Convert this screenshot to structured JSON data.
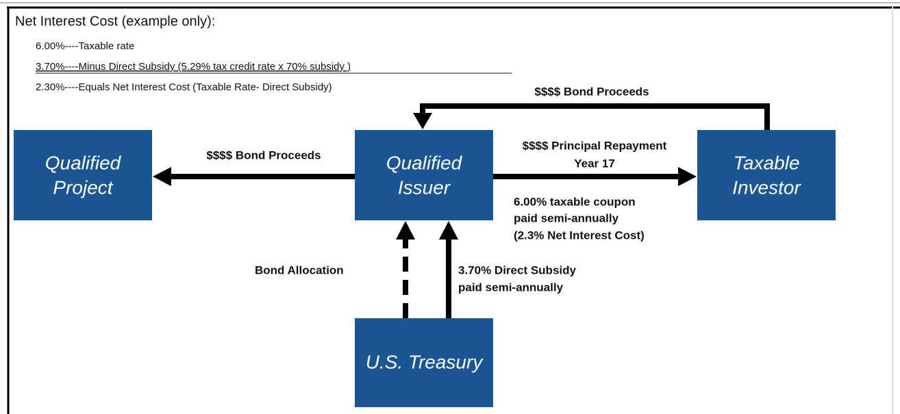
{
  "header": {
    "title": "Net Interest Cost (example only):"
  },
  "notes": [
    "6.00%----Taxable rate",
    "3.70%----Minus Direct Subsidy  (5.29% tax credit rate x 70% subsidy )",
    "2.30%----Equals Net Interest Cost (Taxable Rate- Direct Subsidy)"
  ],
  "nodes": [
    {
      "label": [
        "Qualified",
        "Project"
      ]
    },
    {
      "label": [
        "Qualified",
        "Issuer"
      ]
    },
    {
      "label": [
        "Taxable",
        "Investor"
      ]
    },
    {
      "label": [
        "U.S. Treasury"
      ]
    }
  ],
  "edges": [
    {
      "label": [
        "$$$$ Bond Proceeds"
      ]
    },
    {
      "label": [
        "$$$$ Bond Proceeds"
      ]
    },
    {
      "label": [
        "$$$$ Principal Repayment",
        "Year 17"
      ]
    },
    {
      "label": [
        "6.00% taxable coupon",
        "paid semi-annually",
        "(2.3% Net Interest Cost)"
      ]
    },
    {
      "label": [
        "Bond Allocation"
      ]
    },
    {
      "label": [
        "3.70% Direct Subsidy",
        "paid semi-annually"
      ]
    }
  ]
}
